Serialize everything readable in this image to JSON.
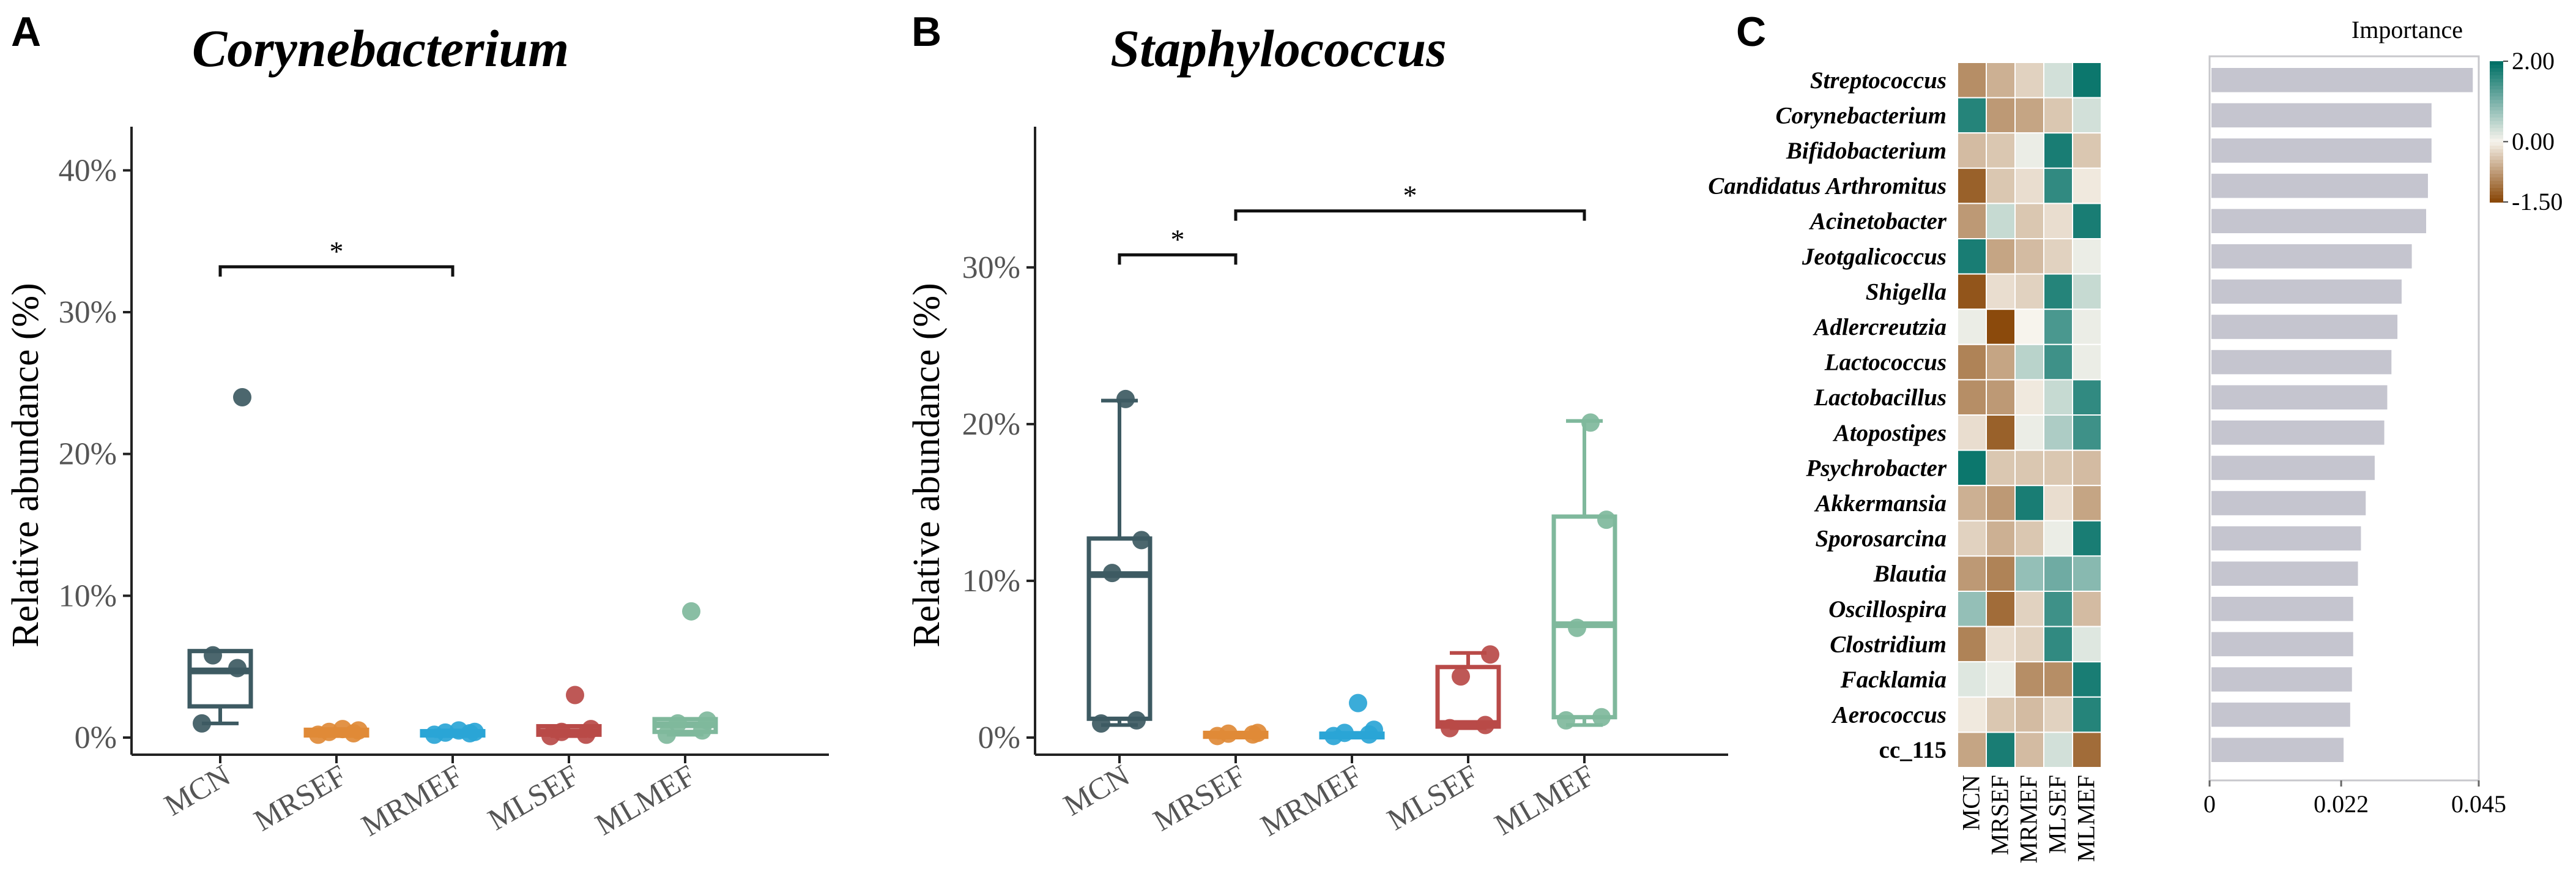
{
  "panels": {
    "A": {
      "label": "A",
      "title": "Corynebacterium"
    },
    "B": {
      "label": "B",
      "title": "Staphylococcus"
    },
    "C": {
      "label": "C",
      "importance_title": "Importance"
    }
  },
  "chart_data": [
    {
      "type": "box",
      "title": "Corynebacterium",
      "ylabel": "Relative abundance (%)",
      "ylim": [
        0,
        42
      ],
      "yticks": [
        0,
        10,
        20,
        30,
        40
      ],
      "ytick_labels": [
        "0%",
        "10%",
        "20%",
        "30%",
        "40%"
      ],
      "categories": [
        "MCN",
        "MRSEF",
        "MRMEF",
        "MLSEF",
        "MLMEF"
      ],
      "colors": [
        "#3d5a62",
        "#e08a37",
        "#2aa5d6",
        "#b94a48",
        "#7fb89c"
      ],
      "boxes": [
        {
          "min": 1.0,
          "q1": 2.2,
          "median": 4.7,
          "q3": 6.1,
          "max": 6.1,
          "points": [
            1.0,
            4.9,
            5.8,
            24.0
          ]
        },
        {
          "min": 0.1,
          "q1": 0.15,
          "median": 0.35,
          "q3": 0.55,
          "max": 0.6,
          "points": [
            0.2,
            0.3,
            0.4,
            0.5,
            0.6
          ]
        },
        {
          "min": 0.1,
          "q1": 0.15,
          "median": 0.3,
          "q3": 0.45,
          "max": 0.5,
          "points": [
            0.2,
            0.3,
            0.35,
            0.4,
            0.5
          ]
        },
        {
          "min": 0.1,
          "q1": 0.2,
          "median": 0.4,
          "q3": 0.8,
          "max": 0.8,
          "points": [
            0.1,
            0.2,
            0.4,
            0.6,
            3.0
          ]
        },
        {
          "min": 0.2,
          "q1": 0.4,
          "median": 0.9,
          "q3": 1.3,
          "max": 1.3,
          "points": [
            0.2,
            0.5,
            1.0,
            1.2,
            8.9
          ]
        }
      ],
      "significance": [
        {
          "from": "MCN",
          "to": "MRMEF",
          "y": 33.2,
          "label": "*"
        }
      ]
    },
    {
      "type": "box",
      "title": "Staphylococcus",
      "ylabel": "Relative abundance (%)",
      "ylim": [
        0,
        38
      ],
      "yticks": [
        0,
        10,
        20,
        30
      ],
      "ytick_labels": [
        "0%",
        "10%",
        "20%",
        "30%"
      ],
      "categories": [
        "MCN",
        "MRSEF",
        "MRMEF",
        "MLSEF",
        "MLMEF"
      ],
      "colors": [
        "#3d5a62",
        "#e08a37",
        "#2aa5d6",
        "#b94a48",
        "#7fb89c"
      ],
      "boxes": [
        {
          "min": 0.8,
          "q1": 1.2,
          "median": 10.4,
          "q3": 12.7,
          "max": 21.5,
          "points": [
            0.9,
            1.1,
            10.5,
            12.6,
            21.6
          ]
        },
        {
          "min": 0.0,
          "q1": 0.05,
          "median": 0.2,
          "q3": 0.3,
          "max": 0.3,
          "points": [
            0.1,
            0.2,
            0.25,
            0.3
          ]
        },
        {
          "min": 0.0,
          "q1": 0.05,
          "median": 0.15,
          "q3": 0.25,
          "max": 0.3,
          "points": [
            0.1,
            0.2,
            0.3,
            0.5,
            2.2
          ]
        },
        {
          "min": 0.6,
          "q1": 0.7,
          "median": 0.9,
          "q3": 4.5,
          "max": 5.4,
          "points": [
            0.6,
            0.8,
            3.9,
            5.3
          ]
        },
        {
          "min": 0.8,
          "q1": 1.3,
          "median": 7.2,
          "q3": 14.1,
          "max": 20.2,
          "points": [
            1.1,
            1.3,
            7.0,
            13.9,
            20.1
          ]
        }
      ],
      "significance": [
        {
          "from": "MCN",
          "to": "MRSEF",
          "y": 30.8,
          "label": "*"
        },
        {
          "from": "MRSEF",
          "to": "MLMEF",
          "y": 33.6,
          "label": "*"
        }
      ]
    },
    {
      "type": "heatmap",
      "columns": [
        "MCN",
        "MRSEF",
        "MRMEF",
        "MLSEF",
        "MLMEF"
      ],
      "rows": [
        "Streptococcus",
        "Corynebacterium",
        "Bifidobacterium",
        "Candidatus Arthromitus",
        "Acinetobacter",
        "Jeotgalicoccus",
        "Shigella",
        "Adlercreutzia",
        "Lactococcus",
        "Lactobacillus",
        "Atopostipes",
        "Psychrobacter",
        "Akkermansia",
        "Sporosarcina",
        "Blautia",
        "Oscillospira",
        "Clostridium",
        "Facklamia",
        "Aerococcus",
        "cc_115"
      ],
      "italic_rows": [
        true,
        true,
        true,
        true,
        true,
        true,
        true,
        true,
        true,
        true,
        true,
        true,
        true,
        true,
        true,
        true,
        true,
        true,
        true,
        false
      ],
      "values": [
        [
          -0.9,
          -0.6,
          -0.3,
          0.3,
          1.9
        ],
        [
          1.7,
          -0.8,
          -0.7,
          -0.4,
          0.3
        ],
        [
          -0.5,
          -0.4,
          0.1,
          1.8,
          -0.4
        ],
        [
          -1.3,
          -0.4,
          -0.2,
          1.6,
          -0.1
        ],
        [
          -0.8,
          0.4,
          -0.4,
          -0.2,
          1.8
        ],
        [
          1.8,
          -0.7,
          -0.5,
          -0.3,
          0.1
        ],
        [
          -1.4,
          -0.2,
          -0.3,
          1.7,
          0.4
        ],
        [
          0.1,
          -1.5,
          0.0,
          1.4,
          0.1
        ],
        [
          -1.0,
          -0.7,
          0.5,
          1.5,
          0.1
        ],
        [
          -0.9,
          -0.8,
          -0.1,
          0.4,
          1.6
        ],
        [
          -0.2,
          -1.3,
          0.1,
          0.6,
          1.5
        ],
        [
          1.9,
          -0.4,
          -0.4,
          -0.4,
          -0.5
        ],
        [
          -0.6,
          -0.8,
          1.8,
          -0.2,
          -0.7
        ],
        [
          -0.3,
          -0.6,
          -0.4,
          0.1,
          1.8
        ],
        [
          -0.8,
          -1.0,
          0.8,
          1.1,
          0.9
        ],
        [
          0.8,
          -1.2,
          -0.3,
          1.5,
          -0.5
        ],
        [
          -1.0,
          -0.2,
          -0.3,
          1.6,
          0.2
        ],
        [
          0.2,
          0.1,
          -0.9,
          -0.9,
          1.8
        ],
        [
          -0.1,
          -0.4,
          -0.5,
          -0.3,
          1.7
        ],
        [
          -0.7,
          1.8,
          -0.5,
          0.3,
          -1.2
        ]
      ],
      "legend": {
        "max_label": "2.00",
        "mid_label": "0.00",
        "min_label": "-1.50",
        "vmin": -1.5,
        "vmax": 2.0
      }
    },
    {
      "type": "bar",
      "orientation": "horizontal",
      "title": "Importance",
      "categories": [
        "Streptococcus",
        "Corynebacterium",
        "Bifidobacterium",
        "Candidatus Arthromitus",
        "Acinetobacter",
        "Jeotgalicoccus",
        "Shigella",
        "Adlercreutzia",
        "Lactococcus",
        "Lactobacillus",
        "Atopostipes",
        "Psychrobacter",
        "Akkermansia",
        "Sporosarcina",
        "Blautia",
        "Oscillospira",
        "Clostridium",
        "Facklamia",
        "Aerococcus",
        "cc_115"
      ],
      "values": [
        0.0437,
        0.0368,
        0.0368,
        0.0362,
        0.0359,
        0.0335,
        0.0318,
        0.0311,
        0.0301,
        0.0294,
        0.0289,
        0.0273,
        0.0258,
        0.025,
        0.0245,
        0.0237,
        0.0237,
        0.0235,
        0.0232,
        0.0221
      ],
      "xlim": [
        0,
        0.045
      ],
      "xticks": [
        0,
        0.022,
        0.045
      ],
      "xtick_labels": [
        "0",
        "0.022",
        "0.045"
      ],
      "color": "#c5c5cf"
    }
  ]
}
